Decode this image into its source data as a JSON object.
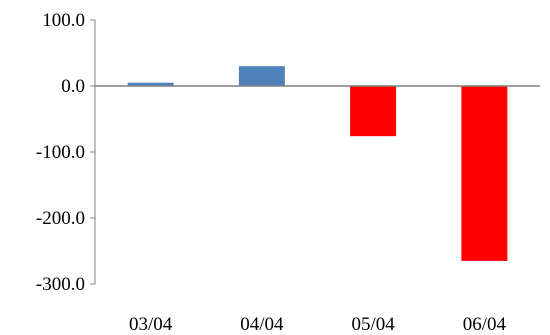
{
  "chart_data": {
    "type": "bar",
    "categories": [
      "03/04",
      "04/04",
      "05/04",
      "06/04"
    ],
    "values": [
      5,
      30,
      -76,
      -265
    ],
    "ylim": [
      -300,
      100
    ],
    "yticks": [
      100,
      0,
      -100,
      -200,
      -300
    ],
    "ytick_labels": [
      "100.0",
      "0.0",
      "-100.0",
      "-200.0",
      "-300.0"
    ],
    "grid": false,
    "legend": "none",
    "colors": {
      "positive": "#4f81bd",
      "negative": "#ff0000",
      "axis": "#808080"
    }
  }
}
